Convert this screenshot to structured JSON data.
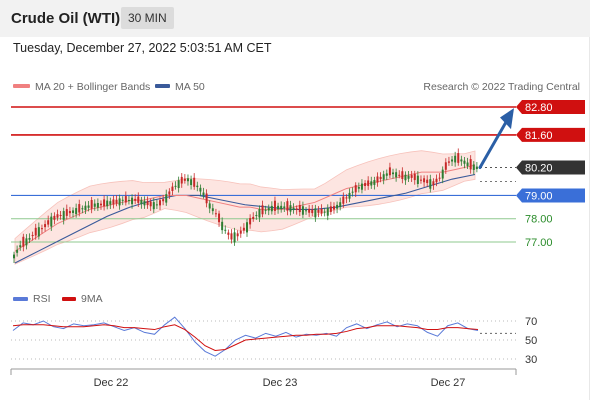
{
  "header": {
    "title": "Crude Oil (WTI)",
    "interval": "30 MIN",
    "datetime": "Tuesday, December 27, 2022 5:03:51 AM CET"
  },
  "legend": {
    "ma20_label": "MA 20 + Bollinger Bands",
    "ma50_label": "MA 50",
    "credit": "Research © 2022 Trading Central",
    "rsi_label": "RSI",
    "rsi_ma_label": "9MA"
  },
  "colors": {
    "resistance": "#d01010",
    "support": "#3a6fd8",
    "green_level": "#2a8c2a",
    "current": "#333333",
    "arrow": "#2b5fa6",
    "ma20": "#f08080",
    "ma50": "#3a5a9a",
    "bollinger_fill": "#fde0dc",
    "candle_up": "#2e7d32",
    "candle_down": "#c62828",
    "rsi": "#5a7ad8",
    "rsi_ma": "#d01010"
  },
  "chart_data": [
    {
      "type": "candlestick",
      "title": "",
      "x_tick_labels": [
        "Dec 22",
        "Dec 23",
        "Dec 27"
      ],
      "price_levels": [
        {
          "label": "82.80",
          "value": 82.8,
          "kind": "resistance"
        },
        {
          "label": "81.60",
          "value": 81.6,
          "kind": "resistance"
        },
        {
          "label": "80.20",
          "value": 80.2,
          "kind": "current"
        },
        {
          "label": "79.00",
          "value": 79.0,
          "kind": "support"
        },
        {
          "label": "78.00",
          "value": 78.0,
          "kind": "support-minor"
        },
        {
          "label": "77.00",
          "value": 77.0,
          "kind": "support-minor"
        }
      ],
      "ylim": [
        75.9,
        83.1
      ],
      "close_series": [
        76.4,
        76.9,
        77.1,
        77.4,
        77.6,
        77.9,
        78.1,
        78.2,
        78.3,
        78.4,
        78.5,
        78.6,
        78.6,
        78.7,
        78.7,
        78.8,
        78.8,
        78.8,
        78.7,
        78.6,
        78.6,
        78.9,
        79.3,
        79.6,
        79.7,
        79.5,
        79.2,
        78.6,
        78.2,
        77.6,
        77.2,
        77.3,
        77.6,
        78.0,
        78.3,
        78.4,
        78.5,
        78.5,
        78.5,
        78.4,
        78.4,
        78.3,
        78.3,
        78.3,
        78.4,
        78.6,
        78.9,
        79.2,
        79.4,
        79.5,
        79.6,
        79.8,
        80.0,
        79.9,
        79.8,
        79.8,
        79.7,
        79.6,
        79.5,
        79.8,
        80.4,
        80.6,
        80.5,
        80.3,
        80.2
      ],
      "ma20_series": [
        76.6,
        76.9,
        77.2,
        77.5,
        77.8,
        78.0,
        78.2,
        78.4,
        78.5,
        78.6,
        78.7,
        78.8,
        78.8,
        78.9,
        79.0,
        79.0,
        79.0,
        78.9,
        78.8,
        78.7,
        78.6,
        78.5,
        78.5,
        78.4,
        78.4,
        78.4,
        78.5,
        78.6,
        78.7,
        78.9,
        79.1,
        79.3,
        79.4,
        79.5,
        79.6,
        79.7,
        79.8,
        79.9,
        80.0,
        80.0,
        80.0,
        80.1,
        80.2,
        80.3
      ],
      "ma50_series": [
        76.1,
        76.6,
        77.1,
        77.6,
        78.1,
        78.5,
        78.8,
        79.0,
        79.0,
        78.8,
        78.6,
        78.5,
        78.4,
        78.4,
        78.5,
        78.7,
        78.9,
        79.1,
        79.4,
        79.7,
        79.9
      ],
      "annotations": [
        "projected path arrow toward 82.80"
      ]
    },
    {
      "type": "line",
      "title": "",
      "series": [
        {
          "name": "RSI",
          "values": [
            60,
            68,
            66,
            70,
            64,
            62,
            67,
            65,
            66,
            68,
            64,
            60,
            63,
            58,
            56,
            66,
            74,
            62,
            48,
            38,
            33,
            40,
            50,
            55,
            52,
            57,
            54,
            58,
            53,
            56,
            55,
            57,
            54,
            63,
            67,
            62,
            66,
            69,
            64,
            67,
            65,
            58,
            54,
            65,
            68,
            62,
            60
          ]
        },
        {
          "name": "9MA",
          "values": [
            65,
            66,
            66,
            66,
            65,
            64,
            64,
            64,
            65,
            66,
            65,
            63,
            63,
            62,
            61,
            64,
            66,
            61,
            53,
            44,
            39,
            40,
            45,
            50,
            51,
            52,
            53,
            54,
            55,
            55,
            56,
            56,
            57,
            59,
            62,
            63,
            65,
            65,
            65,
            64,
            63,
            61,
            61,
            63,
            63,
            62,
            61
          ]
        }
      ],
      "y_ticks": [
        "70",
        "50",
        "30"
      ],
      "ylim": [
        25,
        80
      ]
    }
  ]
}
